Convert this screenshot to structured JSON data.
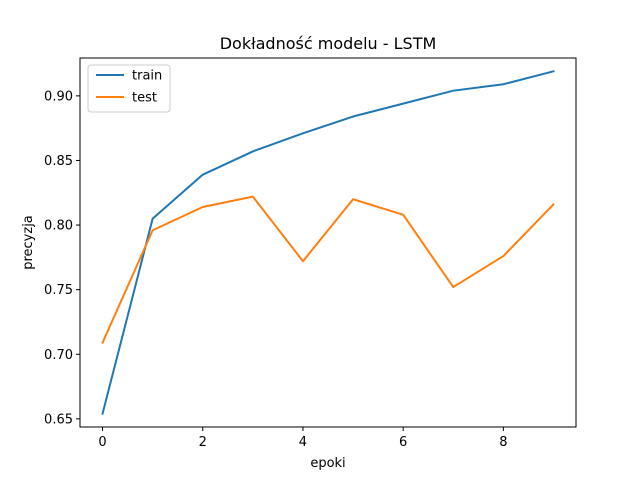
{
  "chart_data": {
    "type": "line",
    "title": "Dokładność modelu - LSTM",
    "xlabel": "epoki",
    "ylabel": "precyzja",
    "x": [
      0,
      1,
      2,
      3,
      4,
      5,
      6,
      7,
      8,
      9
    ],
    "series": [
      {
        "name": "train",
        "color": "#1f77b4",
        "values": [
          0.654,
          0.805,
          0.839,
          0.857,
          0.871,
          0.884,
          0.894,
          0.904,
          0.909,
          0.919
        ]
      },
      {
        "name": "test",
        "color": "#ff7f0e",
        "values": [
          0.709,
          0.796,
          0.814,
          0.822,
          0.772,
          0.82,
          0.808,
          0.752,
          0.776,
          0.816
        ]
      }
    ],
    "xlim": [
      -0.45,
      9.45
    ],
    "ylim": [
      0.6437,
      0.9293
    ],
    "xticks": [
      0,
      2,
      4,
      6,
      8
    ],
    "yticks": [
      0.65,
      0.7,
      0.75,
      0.8,
      0.85,
      0.9
    ],
    "ytick_labels": [
      "0.65",
      "0.70",
      "0.75",
      "0.80",
      "0.85",
      "0.90"
    ],
    "grid": false,
    "legend_position": "top-left"
  }
}
